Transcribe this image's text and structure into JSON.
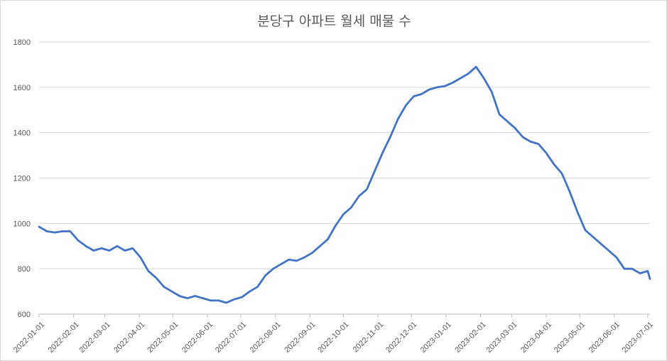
{
  "chart_data": {
    "type": "line",
    "title": "분당구 아파트 월세 매물 수",
    "xlabel": "",
    "ylabel": "",
    "ylim": [
      600,
      1800
    ],
    "yticks": [
      "600",
      "800",
      "1000",
      "1200",
      "1400",
      "1600",
      "1800"
    ],
    "xticks": [
      "2022-01-01",
      "2022-02-01",
      "2022-03-01",
      "2022-04-01",
      "2022-05-01",
      "2022-06-01",
      "2022-07-01",
      "2022-08-01",
      "2022-09-01",
      "2022-10-01",
      "2022-11-01",
      "2022-12-01",
      "2023-01-01",
      "2023-02-01",
      "2023-03-01",
      "2023-04-01",
      "2023-05-01",
      "2023-06-01",
      "2023-07-01"
    ],
    "grid": true,
    "legend": "none",
    "line_color": "#4472C4",
    "series": [
      {
        "x": [
          "2022-01-01",
          "2022-01-08",
          "2022-01-15",
          "2022-01-22",
          "2022-01-29",
          "2022-02-05",
          "2022-02-12",
          "2022-02-19",
          "2022-02-26",
          "2022-03-05",
          "2022-03-12",
          "2022-03-19",
          "2022-03-26",
          "2022-04-02",
          "2022-04-09",
          "2022-04-16",
          "2022-04-23",
          "2022-04-30",
          "2022-05-07",
          "2022-05-14",
          "2022-05-21",
          "2022-05-28",
          "2022-06-04",
          "2022-06-11",
          "2022-06-18",
          "2022-06-25",
          "2022-07-02",
          "2022-07-09",
          "2022-07-16",
          "2022-07-23",
          "2022-07-30",
          "2022-08-06",
          "2022-08-13",
          "2022-08-20",
          "2022-08-27",
          "2022-09-03",
          "2022-09-10",
          "2022-09-17",
          "2022-09-24",
          "2022-10-01",
          "2022-10-08",
          "2022-10-15",
          "2022-10-22",
          "2022-10-29",
          "2022-11-05",
          "2022-11-12",
          "2022-11-19",
          "2022-11-26",
          "2022-12-03",
          "2022-12-10",
          "2022-12-17",
          "2022-12-24",
          "2022-12-31",
          "2023-01-07",
          "2023-01-14",
          "2023-01-21",
          "2023-01-28",
          "2023-02-04",
          "2023-02-11",
          "2023-02-18",
          "2023-02-25",
          "2023-03-04",
          "2023-03-11",
          "2023-03-18",
          "2023-03-25",
          "2023-04-01",
          "2023-04-08",
          "2023-04-15",
          "2023-04-22",
          "2023-04-29",
          "2023-05-06",
          "2023-05-13",
          "2023-05-20",
          "2023-05-27",
          "2023-06-03",
          "2023-06-10",
          "2023-06-17",
          "2023-06-24",
          "2023-07-01",
          "2023-07-03"
        ],
        "values": [
          985,
          965,
          960,
          965,
          965,
          925,
          900,
          880,
          890,
          880,
          900,
          880,
          890,
          850,
          790,
          760,
          720,
          700,
          680,
          670,
          680,
          670,
          660,
          660,
          650,
          665,
          675,
          700,
          720,
          770,
          800,
          820,
          840,
          835,
          850,
          870,
          900,
          930,
          990,
          1040,
          1070,
          1120,
          1150,
          1230,
          1310,
          1380,
          1460,
          1520,
          1560,
          1570,
          1590,
          1600,
          1605,
          1620,
          1640,
          1660,
          1690,
          1640,
          1580,
          1480,
          1450,
          1420,
          1380,
          1360,
          1350,
          1310,
          1260,
          1220,
          1140,
          1050,
          970,
          940,
          910,
          880,
          850,
          800,
          800,
          780,
          790,
          755
        ]
      }
    ]
  }
}
